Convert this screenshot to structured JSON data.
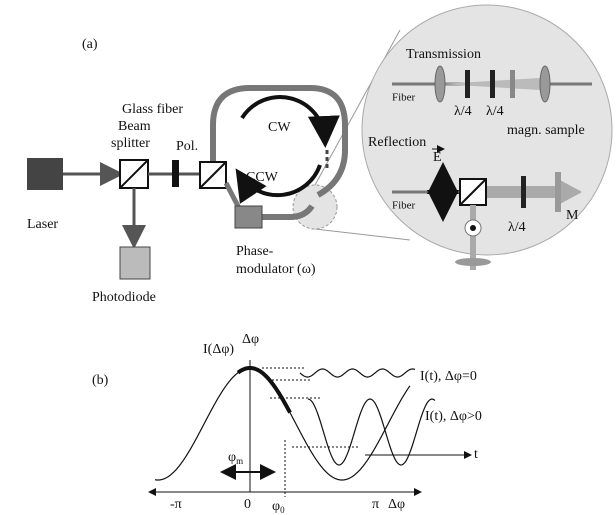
{
  "panel_a": {
    "label": "(a)",
    "laser": "Laser",
    "beam_splitter": [
      "Beam",
      "splitter"
    ],
    "photodiode": "Photodiode",
    "polarizer": "Pol.",
    "glass_fiber": "Glass fiber",
    "cw": "CW",
    "ccw": "CCW",
    "phase_modulator": [
      "Phase-",
      "modulator (ω)"
    ],
    "inset": {
      "transmission": {
        "title": "Transmission",
        "fiber": "Fiber",
        "plates": [
          "λ/4",
          "λ/4"
        ],
        "sample": "magn. sample"
      },
      "reflection": {
        "title": "Reflection",
        "field": "E",
        "fiber": "Fiber",
        "plate": "λ/4",
        "mirror": "M"
      }
    }
  },
  "panel_b": {
    "label": "(b)",
    "y_axis": "I(Δφ)",
    "top_axis": "Δφ",
    "signal_zero": "I(t), Δφ=0",
    "signal_nonzero": "I(t), Δφ>0",
    "time": "t",
    "modulation": {
      "symbol": "φ",
      "subscript": "m"
    },
    "x_ticks": [
      "-π",
      "0",
      "π"
    ],
    "operating_point": {
      "symbol": "φ",
      "subscript": "0"
    },
    "x_axis": "Δφ"
  }
}
